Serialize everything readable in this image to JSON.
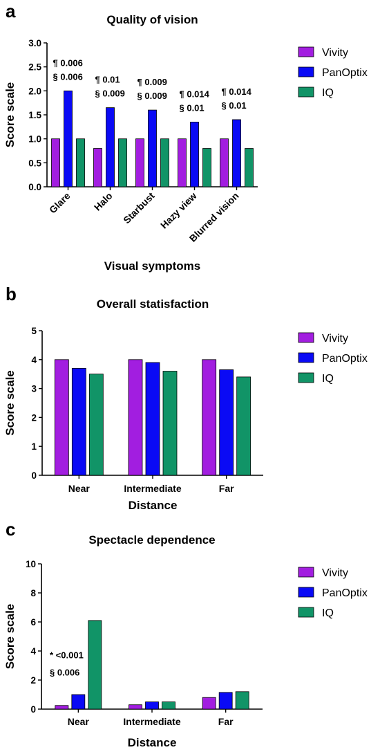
{
  "chart_data": [
    {
      "panel_label": "a",
      "type": "bar",
      "title": "Quality of vision",
      "xlabel": "Visual symptoms",
      "ylabel": "Score scale",
      "ylim": [
        0,
        3
      ],
      "yticks": [
        "0.0",
        "0.5",
        "1.0",
        "1.5",
        "2.0",
        "2.5",
        "3.0"
      ],
      "categories": [
        "Glare",
        "Halo",
        "Starbust",
        "Hazy view",
        "Blurred vision"
      ],
      "series": [
        {
          "name": "Vivity",
          "color": "#a21ee0",
          "values": [
            1.0,
            0.8,
            1.0,
            1.0,
            1.0
          ]
        },
        {
          "name": "PanOptix",
          "color": "#0a0af5",
          "values": [
            2.0,
            1.65,
            1.6,
            1.35,
            1.4
          ]
        },
        {
          "name": "IQ",
          "color": "#119467",
          "values": [
            1.0,
            1.0,
            1.0,
            0.8,
            0.8
          ]
        }
      ],
      "annotations": [
        {
          "category": "Glare",
          "lines": [
            "¶ 0.006",
            "§ 0.006"
          ]
        },
        {
          "category": "Halo",
          "lines": [
            "¶ 0.01",
            "§ 0.009"
          ]
        },
        {
          "category": "Starbust",
          "lines": [
            "¶ 0.009",
            "§ 0.009"
          ]
        },
        {
          "category": "Hazy view",
          "lines": [
            "¶ 0.014",
            "§ 0.01"
          ]
        },
        {
          "category": "Blurred vision",
          "lines": [
            "¶ 0.014",
            "§ 0.01"
          ]
        }
      ],
      "legend": "right",
      "rotated_xticks": true
    },
    {
      "panel_label": "b",
      "type": "bar",
      "title": "Overall statisfaction",
      "xlabel": "Distance",
      "ylabel": "Score scale",
      "ylim": [
        0,
        5
      ],
      "yticks": [
        "0",
        "1",
        "2",
        "3",
        "4",
        "5"
      ],
      "categories": [
        "Near",
        "Intermediate",
        "Far"
      ],
      "series": [
        {
          "name": "Vivity",
          "color": "#a21ee0",
          "values": [
            4.0,
            4.0,
            4.0
          ]
        },
        {
          "name": "PanOptix",
          "color": "#0a0af5",
          "values": [
            3.7,
            3.9,
            3.65
          ]
        },
        {
          "name": "IQ",
          "color": "#119467",
          "values": [
            3.5,
            3.6,
            3.4
          ]
        }
      ],
      "annotations": [],
      "legend": "right",
      "rotated_xticks": false
    },
    {
      "panel_label": "c",
      "type": "bar",
      "title": "Spectacle dependence",
      "xlabel": "Distance",
      "ylabel": "Score scale",
      "ylim": [
        0,
        10
      ],
      "yticks": [
        "0",
        "2",
        "4",
        "6",
        "8",
        "10"
      ],
      "categories": [
        "Near",
        "Intermediate",
        "Far"
      ],
      "series": [
        {
          "name": "Vivity",
          "color": "#a21ee0",
          "values": [
            0.25,
            0.3,
            0.8
          ]
        },
        {
          "name": "PanOptix",
          "color": "#0a0af5",
          "values": [
            1.0,
            0.5,
            1.15
          ]
        },
        {
          "name": "IQ",
          "color": "#119467",
          "values": [
            6.1,
            0.5,
            1.2
          ]
        }
      ],
      "annotations": [
        {
          "category": "Near",
          "lines": [
            "* <0.001",
            "§ 0.006"
          ]
        }
      ],
      "legend": "right",
      "rotated_xticks": false
    }
  ]
}
